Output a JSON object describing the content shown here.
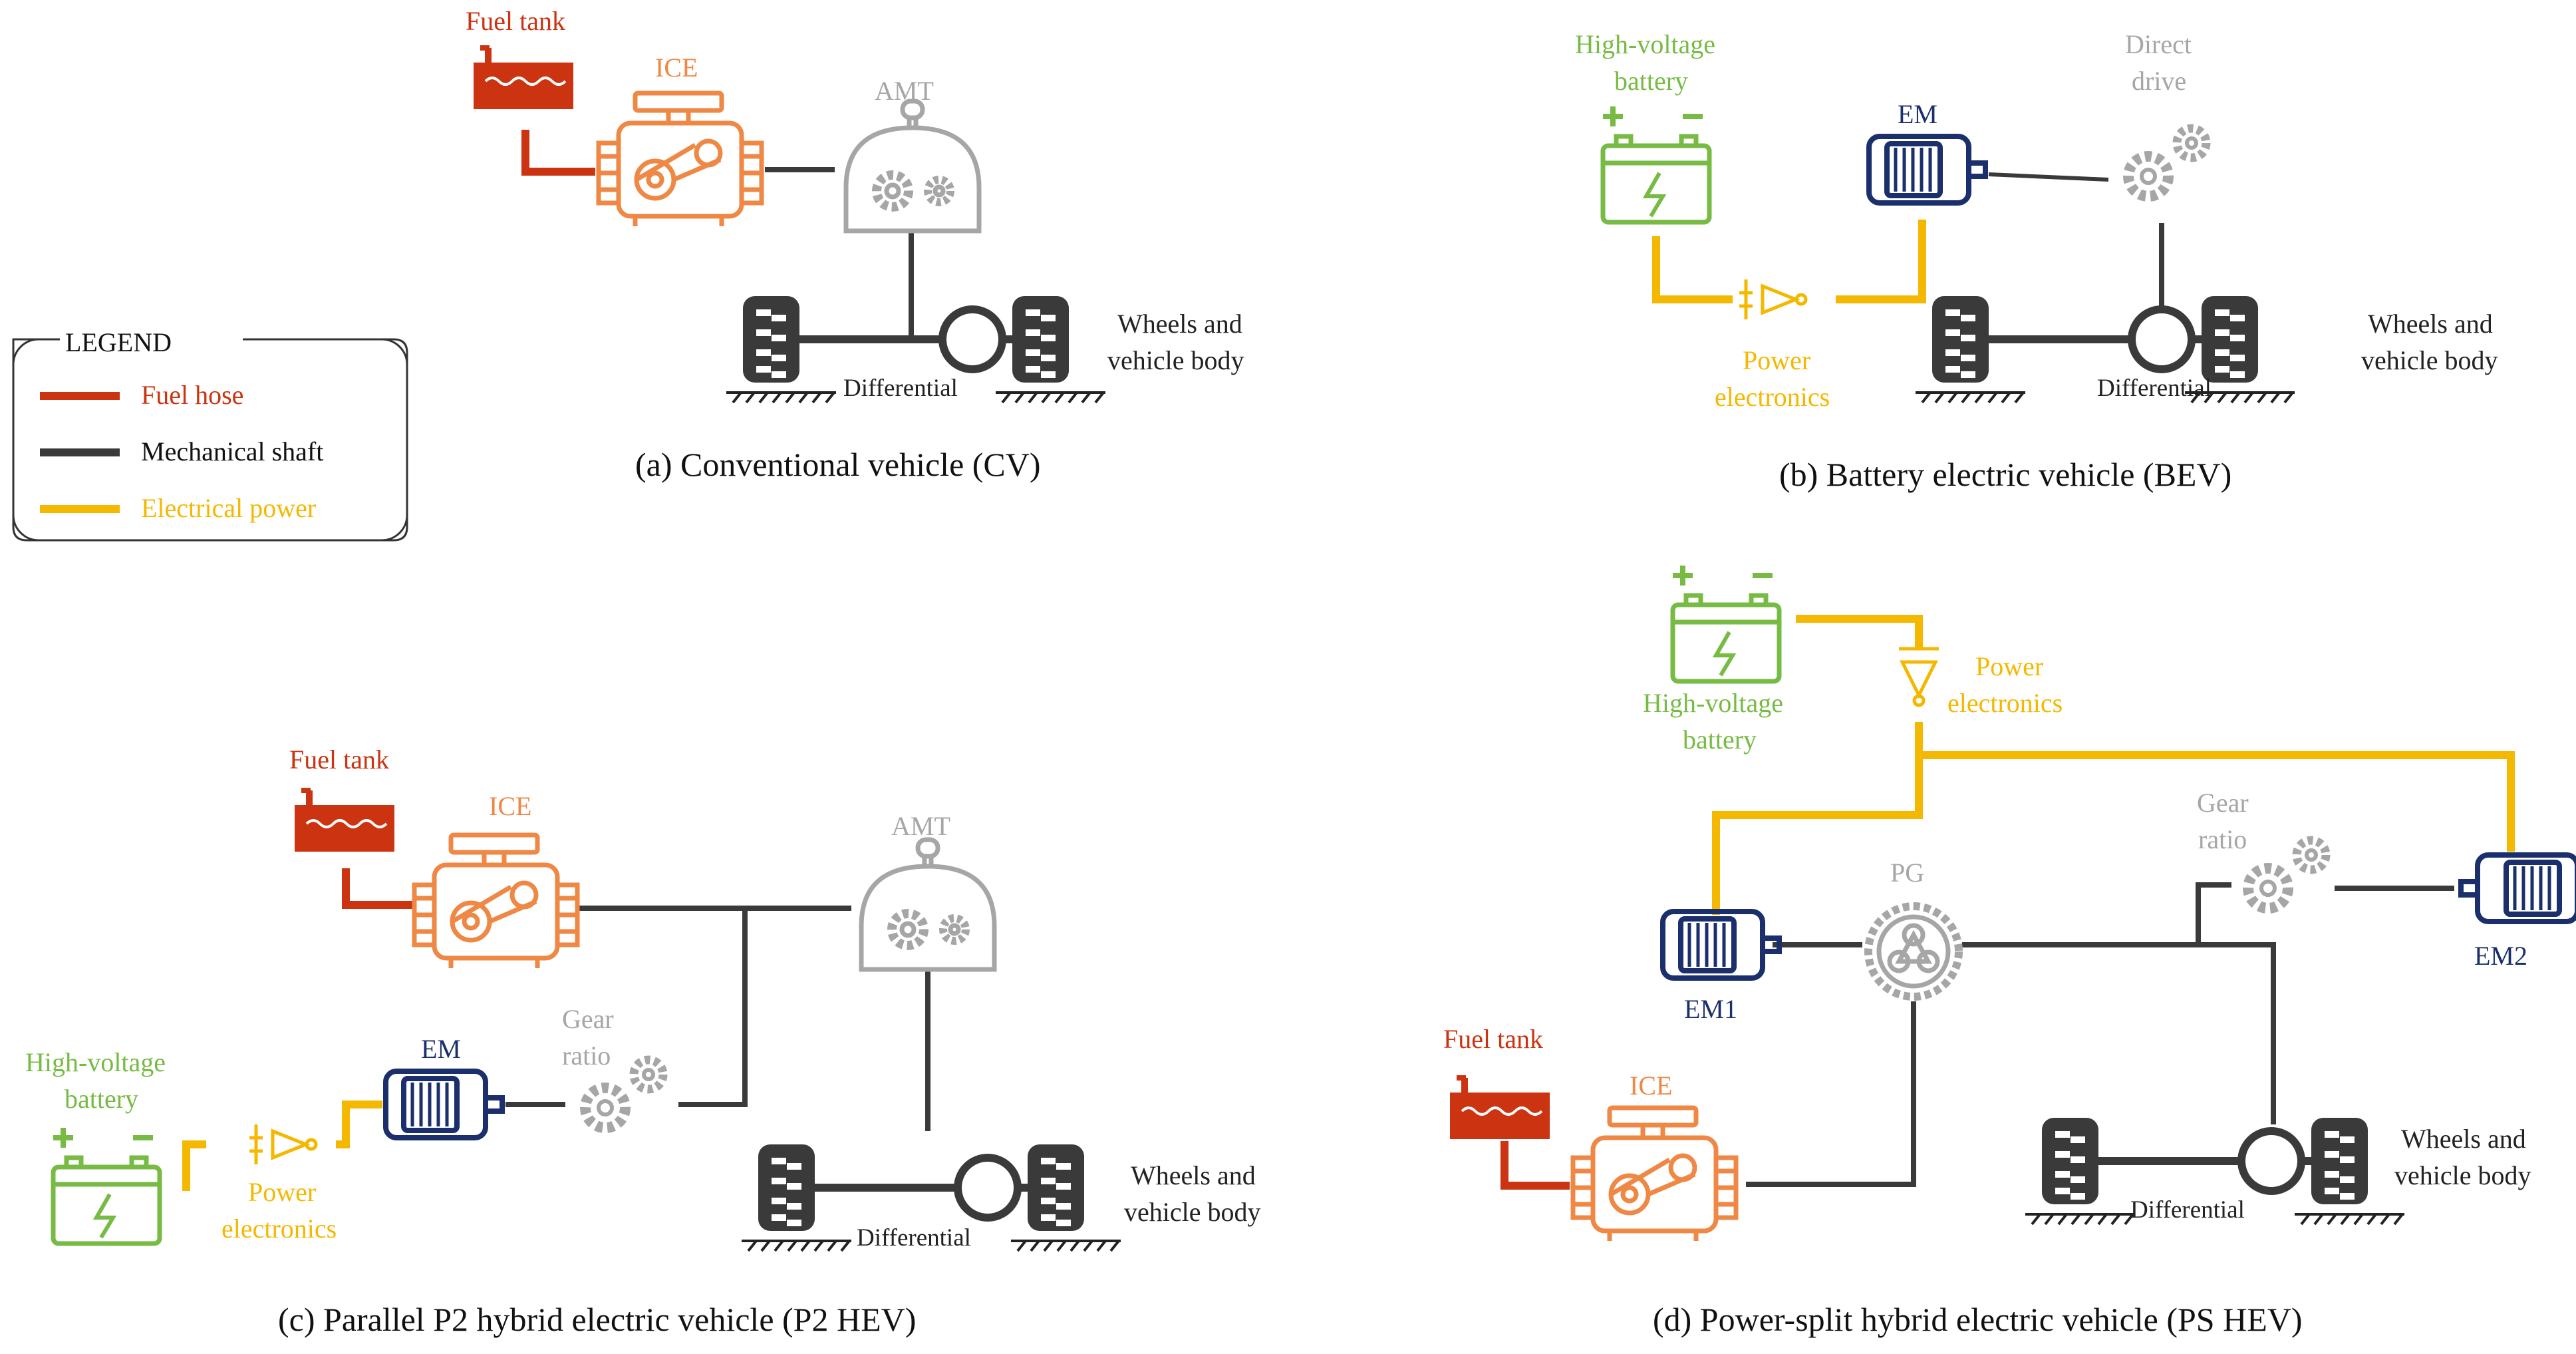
{
  "colors": {
    "fuel_hose": "#cc3311",
    "mechanical_shaft": "#3a3a3a",
    "electrical_power": "#f5b800",
    "battery": "#77bb44",
    "ice": "#ee8844",
    "gear": "#a6a6a6",
    "em": "#1a2f6b"
  },
  "legend": {
    "title": "LEGEND",
    "fuel_hose": "Fuel hose",
    "mechanical_shaft": "Mechanical shaft",
    "electrical_power": "Electrical power"
  },
  "panel_a": {
    "caption": "(a) Conventional vehicle (CV)",
    "fuel_tank": "Fuel tank",
    "ice": "ICE",
    "amt": "AMT",
    "differential": "Differential",
    "wheels_line1": "Wheels and",
    "wheels_line2": "vehicle body"
  },
  "panel_b": {
    "caption": "(b) Battery electric vehicle (BEV)",
    "battery_line1": "High-voltage",
    "battery_line2": "battery",
    "em": "EM",
    "direct_line1": "Direct",
    "direct_line2": "drive",
    "pe_line1": "Power",
    "pe_line2": "electronics",
    "differential": "Differential",
    "wheels_line1": "Wheels and",
    "wheels_line2": "vehicle body"
  },
  "panel_c": {
    "caption": "(c) Parallel P2 hybrid electric vehicle (P2 HEV)",
    "fuel_tank": "Fuel tank",
    "ice": "ICE",
    "amt": "AMT",
    "gear_line1": "Gear",
    "gear_line2": "ratio",
    "em": "EM",
    "battery_line1": "High-voltage",
    "battery_line2": "battery",
    "pe_line1": "Power",
    "pe_line2": "electronics",
    "differential": "Differential",
    "wheels_line1": "Wheels and",
    "wheels_line2": "vehicle body"
  },
  "panel_d": {
    "caption": "(d) Power-split hybrid electric vehicle (PS HEV)",
    "battery_line1": "High-voltage",
    "battery_line2": "battery",
    "pe_line1": "Power",
    "pe_line2": "electronics",
    "gear_line1": "Gear",
    "gear_line2": "ratio",
    "pg": "PG",
    "em1": "EM1",
    "em2": "EM2",
    "fuel_tank": "Fuel tank",
    "ice": "ICE",
    "differential": "Differential",
    "wheels_line1": "Wheels and",
    "wheels_line2": "vehicle body"
  }
}
